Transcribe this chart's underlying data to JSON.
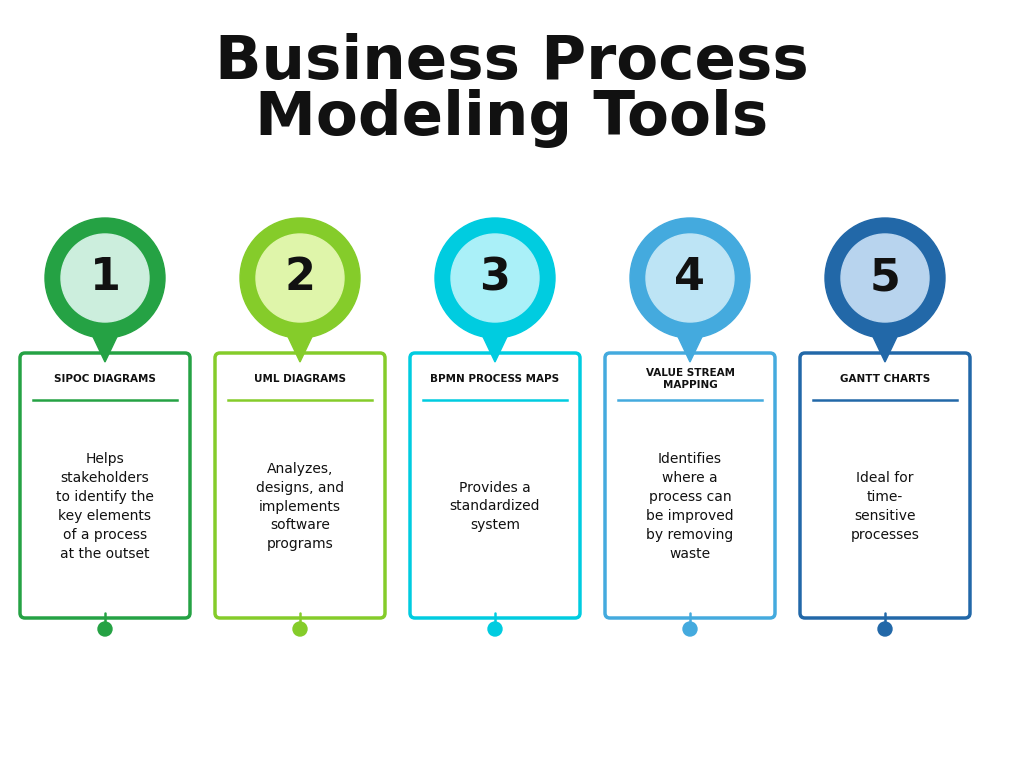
{
  "title_line1": "Business Process",
  "title_line2": "Modeling Tools",
  "title_fontsize": 44,
  "title_fontweight": "bold",
  "title_color": "#111111",
  "bg_color": "#ffffff",
  "items": [
    {
      "number": "1",
      "outer_color": "#25a244",
      "inner_color": "#cceedd",
      "border_color": "#25a244",
      "dot_color": "#25a244",
      "label": "SIPOC DIAGRAMS",
      "text": "Helps\nstakeholders\nto identify the\nkey elements\nof a process\nat the outset"
    },
    {
      "number": "2",
      "outer_color": "#85cc2a",
      "inner_color": "#dff5aa",
      "border_color": "#85cc2a",
      "dot_color": "#85cc2a",
      "label": "UML DIAGRAMS",
      "text": "Analyzes,\ndesigns, and\nimplements\nsoftware\nprograms"
    },
    {
      "number": "3",
      "outer_color": "#00cce0",
      "inner_color": "#aaf0f8",
      "border_color": "#00cce0",
      "dot_color": "#00cce0",
      "label": "BPMN PROCESS MAPS",
      "text": "Provides a\nstandardized\nsystem"
    },
    {
      "number": "4",
      "outer_color": "#44aade",
      "inner_color": "#bde4f5",
      "border_color": "#44aade",
      "dot_color": "#44aade",
      "label": "VALUE STREAM\nMAPPING",
      "text": "Identifies\nwhere a\nprocess can\nbe improved\nby removing\nwaste"
    },
    {
      "number": "5",
      "outer_color": "#2268a8",
      "inner_color": "#b8d4ee",
      "border_color": "#2268a8",
      "dot_color": "#2268a8",
      "label": "GANTT CHARTS",
      "text": "Ideal for\ntime-\nsensitive\nprocesses"
    }
  ]
}
